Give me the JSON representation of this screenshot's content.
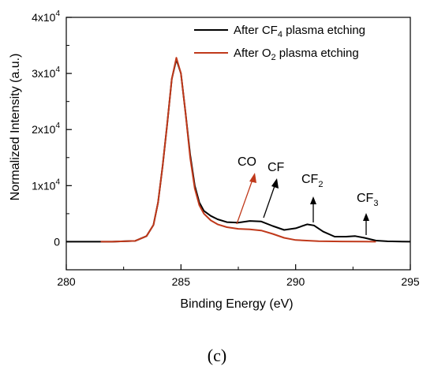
{
  "chart_data": {
    "type": "line",
    "xlabel": "Binding Energy (eV)",
    "ylabel": "Normalized Intensity (a.u.)",
    "xlim": [
      280,
      295
    ],
    "ylim": [
      -5000,
      40000
    ],
    "x_ticks": [
      280,
      285,
      290,
      295
    ],
    "y_ticks": [
      {
        "value": 0,
        "base": "0",
        "exp": ""
      },
      {
        "value": 10000,
        "base": "1x10",
        "exp": "4"
      },
      {
        "value": 20000,
        "base": "2x10",
        "exp": "4"
      },
      {
        "value": 30000,
        "base": "3x10",
        "exp": "4"
      },
      {
        "value": 40000,
        "base": "4x10",
        "exp": "4"
      }
    ],
    "legend_position": "top-right",
    "series": [
      {
        "name": "After CF4 plasma etching",
        "name_parts": {
          "prefix": "After CF",
          "sub": "4",
          "suffix": " plasma etching"
        },
        "color": "#000000",
        "points": [
          [
            280.0,
            0
          ],
          [
            282.0,
            0
          ],
          [
            283.0,
            150
          ],
          [
            283.5,
            1000
          ],
          [
            283.8,
            3000
          ],
          [
            284.0,
            7000
          ],
          [
            284.2,
            13500
          ],
          [
            284.4,
            21000
          ],
          [
            284.6,
            29000
          ],
          [
            284.8,
            32500
          ],
          [
            285.0,
            30000
          ],
          [
            285.2,
            23000
          ],
          [
            285.4,
            15500
          ],
          [
            285.6,
            10000
          ],
          [
            285.8,
            7000
          ],
          [
            286.0,
            5500
          ],
          [
            286.3,
            4600
          ],
          [
            286.6,
            4000
          ],
          [
            287.0,
            3500
          ],
          [
            287.5,
            3400
          ],
          [
            288.0,
            3700
          ],
          [
            288.5,
            3600
          ],
          [
            289.0,
            2800
          ],
          [
            289.5,
            2100
          ],
          [
            290.0,
            2400
          ],
          [
            290.5,
            3100
          ],
          [
            290.8,
            2900
          ],
          [
            291.2,
            1800
          ],
          [
            291.7,
            900
          ],
          [
            292.2,
            900
          ],
          [
            292.6,
            1000
          ],
          [
            293.0,
            700
          ],
          [
            293.5,
            200
          ],
          [
            294.0,
            80
          ],
          [
            295.0,
            0
          ]
        ]
      },
      {
        "name": "After O2 plasma etching",
        "name_parts": {
          "prefix": "After O",
          "sub": "2",
          "suffix": " plasma etching"
        },
        "color": "#c0391b",
        "points": [
          [
            281.5,
            0
          ],
          [
            282.0,
            0
          ],
          [
            283.0,
            150
          ],
          [
            283.5,
            1000
          ],
          [
            283.8,
            3000
          ],
          [
            284.0,
            7000
          ],
          [
            284.2,
            13500
          ],
          [
            284.4,
            21000
          ],
          [
            284.6,
            29000
          ],
          [
            284.8,
            32800
          ],
          [
            285.0,
            30000
          ],
          [
            285.2,
            23000
          ],
          [
            285.4,
            15000
          ],
          [
            285.6,
            9500
          ],
          [
            285.8,
            6500
          ],
          [
            286.0,
            5000
          ],
          [
            286.3,
            3800
          ],
          [
            286.6,
            3100
          ],
          [
            287.0,
            2600
          ],
          [
            287.5,
            2300
          ],
          [
            288.0,
            2200
          ],
          [
            288.5,
            2000
          ],
          [
            289.0,
            1400
          ],
          [
            289.5,
            700
          ],
          [
            290.0,
            300
          ],
          [
            291.0,
            100
          ],
          [
            292.0,
            50
          ],
          [
            293.0,
            20
          ],
          [
            293.5,
            0
          ]
        ]
      }
    ],
    "annotations": [
      {
        "text": "CO",
        "sub": ""
      },
      {
        "text": "CF",
        "sub": ""
      },
      {
        "text": "CF",
        "sub": "2"
      },
      {
        "text": "CF",
        "sub": "3"
      }
    ]
  },
  "caption": "(c)"
}
